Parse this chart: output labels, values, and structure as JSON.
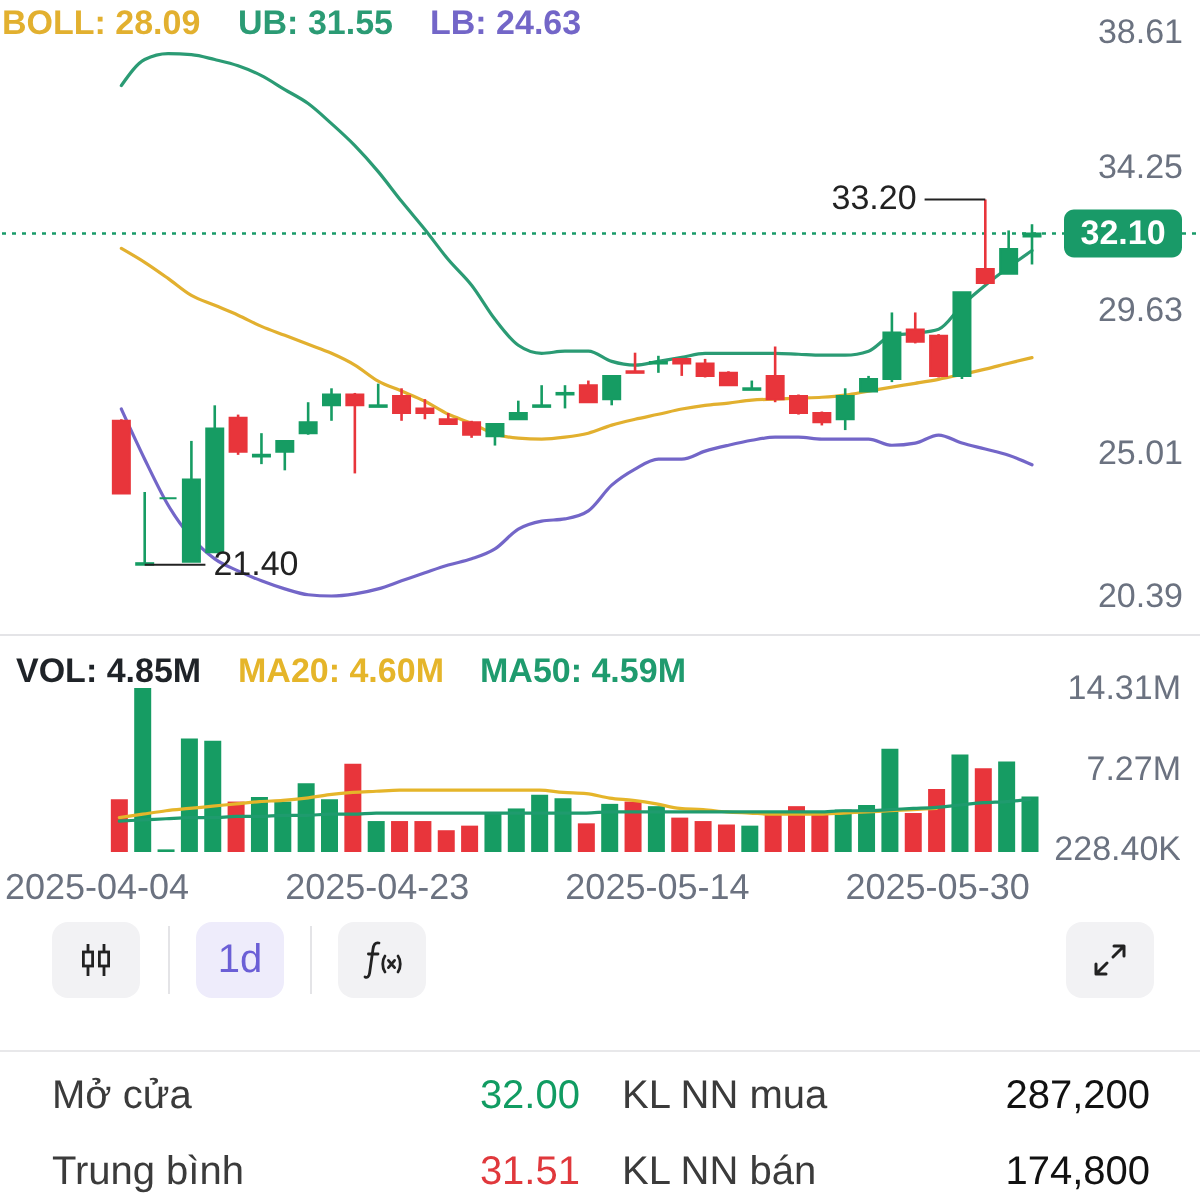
{
  "chart_data": [
    {
      "type": "candlestick",
      "categories": [
        "2025-04-04",
        null,
        null,
        null,
        null,
        null,
        null,
        null,
        null,
        null,
        null,
        null,
        "2025-04-23",
        null,
        null,
        null,
        null,
        null,
        null,
        null,
        null,
        null,
        null,
        null,
        "2025-05-14",
        null,
        null,
        null,
        null,
        null,
        null,
        null,
        null,
        null,
        null,
        null,
        "2025-05-30",
        null,
        null,
        null,
        null
      ],
      "ohlc": [
        null,
        [
          26.05,
          26.1,
          23.7,
          23.7
        ],
        [
          21.4,
          23.75,
          21.4,
          21.45
        ],
        [
          23.55,
          23.55,
          23.55,
          23.55
        ],
        [
          21.5,
          25.4,
          21.5,
          24.15
        ],
        [
          21.8,
          26.55,
          21.8,
          25.8
        ],
        [
          26.15,
          26.25,
          24.95,
          25.05
        ],
        [
          24.9,
          25.65,
          24.65,
          24.95
        ],
        [
          25.05,
          25.4,
          24.45,
          25.4
        ],
        [
          25.65,
          26.65,
          25.6,
          26.0
        ],
        [
          26.55,
          27.1,
          26.05,
          26.9
        ],
        [
          26.9,
          26.95,
          24.35,
          26.55
        ],
        [
          26.5,
          27.25,
          26.5,
          26.55
        ],
        [
          26.85,
          27.1,
          26.05,
          26.3
        ],
        [
          26.45,
          26.75,
          26.1,
          26.3
        ],
        [
          26.1,
          26.3,
          25.95,
          25.95
        ],
        [
          26.0,
          26.05,
          25.5,
          25.6
        ],
        [
          25.55,
          25.95,
          25.25,
          25.95
        ],
        [
          26.1,
          26.7,
          26.1,
          26.3
        ],
        [
          26.5,
          27.2,
          26.5,
          26.55
        ],
        [
          26.9,
          27.2,
          26.45,
          26.95
        ],
        [
          27.2,
          27.35,
          26.65,
          26.65
        ],
        [
          26.75,
          27.5,
          26.55,
          27.5
        ],
        [
          27.65,
          28.25,
          27.6,
          27.6
        ],
        [
          27.9,
          28.15,
          27.6,
          27.95
        ],
        [
          28.05,
          28.05,
          27.5,
          27.9
        ],
        [
          27.9,
          28.05,
          27.45,
          27.5
        ],
        [
          27.6,
          27.65,
          27.2,
          27.2
        ],
        [
          27.05,
          27.35,
          27.05,
          27.1
        ],
        [
          27.5,
          28.45,
          26.65,
          26.75
        ],
        [
          26.85,
          26.9,
          26.25,
          26.3
        ],
        [
          26.3,
          26.35,
          25.9,
          26.0
        ],
        [
          26.1,
          27.1,
          25.75,
          26.85
        ],
        [
          27.0,
          27.5,
          27.0,
          27.4
        ],
        [
          27.4,
          29.55,
          27.3,
          28.9
        ],
        [
          29.0,
          29.55,
          28.55,
          28.6
        ],
        [
          28.8,
          28.85,
          27.45,
          27.5
        ],
        [
          27.5,
          30.2,
          27.4,
          30.2
        ],
        [
          30.95,
          33.2,
          30.45,
          30.5
        ],
        [
          30.8,
          32.2,
          30.8,
          31.6
        ],
        [
          32.0,
          32.4,
          31.1,
          32.1
        ]
      ],
      "colors": [
        null,
        "#e8353b",
        "#169c63",
        "#169c63",
        "#169c63",
        "#169c63",
        "#e8353b",
        "#169c63",
        "#169c63",
        "#169c63",
        "#169c63",
        "#e8353b",
        "#169c63",
        "#e8353b",
        "#e8353b",
        "#e8353b",
        "#e8353b",
        "#169c63",
        "#169c63",
        "#169c63",
        "#169c63",
        "#e8353b",
        "#169c63",
        "#e8353b",
        "#169c63",
        "#e8353b",
        "#e8353b",
        "#e8353b",
        "#169c63",
        "#e8353b",
        "#e8353b",
        "#e8353b",
        "#169c63",
        "#169c63",
        "#169c63",
        "#e8353b",
        "#e8353b",
        "#169c63",
        "#e8353b",
        "#169c63",
        "#169c63"
      ],
      "series": [
        {
          "name": "BOLL: 28.09",
          "type": "line",
          "color": "#e2b02f",
          "values": [
            null,
            31.62,
            31.17,
            30.65,
            30.1,
            29.78,
            29.46,
            29.1,
            28.81,
            28.52,
            28.23,
            27.85,
            27.33,
            27.01,
            26.68,
            26.26,
            25.97,
            25.62,
            25.49,
            25.46,
            25.52,
            25.65,
            25.91,
            26.1,
            26.26,
            26.43,
            26.55,
            26.62,
            26.72,
            26.75,
            26.78,
            26.81,
            26.88,
            27.01,
            27.14,
            27.26,
            27.39,
            27.55,
            27.72,
            27.91,
            28.09
          ]
        },
        {
          "name": "UB: 31.55",
          "type": "line",
          "color": "#2b9b74",
          "values": [
            null,
            36.88,
            37.72,
            37.91,
            37.88,
            37.72,
            37.52,
            37.2,
            36.75,
            36.3,
            35.65,
            34.94,
            34.1,
            33.14,
            32.23,
            31.26,
            30.43,
            29.33,
            28.49,
            28.23,
            28.3,
            28.3,
            27.97,
            27.85,
            27.97,
            28.1,
            28.23,
            28.23,
            28.23,
            28.23,
            28.2,
            28.17,
            28.17,
            28.3,
            28.81,
            28.88,
            29.01,
            29.78,
            30.43,
            31.01,
            31.55
          ]
        },
        {
          "name": "LB: 24.63",
          "type": "line",
          "color": "#7366c8",
          "values": [
            null,
            26.43,
            24.81,
            23.33,
            null,
            21.59,
            21.2,
            20.88,
            20.62,
            20.43,
            20.39,
            20.46,
            20.62,
            20.88,
            21.14,
            21.39,
            21.59,
            21.91,
            22.55,
            22.81,
            22.88,
            23.14,
            23.97,
            24.49,
            24.81,
            24.81,
            25.07,
            25.26,
            25.42,
            25.52,
            25.52,
            25.46,
            25.46,
            25.46,
            25.26,
            25.33,
            25.59,
            25.33,
            25.14,
            24.94,
            24.63
          ]
        }
      ],
      "ylim": [
        20.39,
        38.61
      ],
      "yticks": [
        20.39,
        25.01,
        29.63,
        34.25,
        38.61
      ],
      "ref_lines": [
        {
          "axis": "y",
          "value": 32.1,
          "label": "32.10",
          "color": "#199a68",
          "line_style": "dotted"
        }
      ],
      "annotations": [
        "33.20",
        "21.40"
      ],
      "legend": "top left",
      "tick_labels": "y"
    },
    {
      "type": "bar",
      "categories": [
        "2025-04-04",
        null,
        null,
        null,
        null,
        null,
        null,
        null,
        null,
        null,
        null,
        null,
        "2025-04-23",
        null,
        null,
        null,
        null,
        null,
        null,
        null,
        null,
        null,
        null,
        null,
        "2025-05-14",
        null,
        null,
        null,
        null,
        null,
        null,
        null,
        null,
        null,
        null,
        null,
        "2025-05-30",
        null,
        null,
        null,
        null
      ],
      "series": [
        {
          "name": "VOL: 4.85M",
          "type": "bar",
          "colors": [
            null,
            "#e8353b",
            "#169c63",
            "#169c63",
            "#169c63",
            "#169c63",
            "#e8353b",
            "#169c63",
            "#169c63",
            "#169c63",
            "#169c63",
            "#e8353b",
            "#169c63",
            "#e8353b",
            "#e8353b",
            "#e8353b",
            "#e8353b",
            "#169c63",
            "#169c63",
            "#169c63",
            "#169c63",
            "#e8353b",
            "#169c63",
            "#e8353b",
            "#169c63",
            "#e8353b",
            "#e8353b",
            "#e8353b",
            "#169c63",
            "#e8353b",
            "#e8353b",
            "#e8353b",
            "#169c63",
            "#169c63",
            "#169c63",
            "#e8353b",
            "#e8353b",
            "#169c63",
            "#e8353b",
            "#169c63",
            "#169c63"
          ],
          "values": [
            null,
            4600000,
            14310000,
            228400,
            9900000,
            9700000,
            4400000,
            4800000,
            4400000,
            6000000,
            4600000,
            7700000,
            2700000,
            2700000,
            2700000,
            1900000,
            2300000,
            3400000,
            3800000,
            5000000,
            4700000,
            2500000,
            4200000,
            4400000,
            4000000,
            3000000,
            2700000,
            2400000,
            2300000,
            3400000,
            4000000,
            3300000,
            3700000,
            4100000,
            9000000,
            3400000,
            5500000,
            8500000,
            7300000,
            7900000,
            4850000
          ]
        },
        {
          "name": "MA20: 4.60M",
          "type": "line",
          "color": "#e5b52a",
          "values": [
            null,
            3000000,
            3300000,
            3600000,
            3800000,
            4000000,
            4200000,
            4400000,
            4500000,
            4700000,
            5000000,
            5200000,
            5300000,
            5400000,
            5400000,
            5400000,
            5400000,
            5400000,
            5400000,
            5400000,
            5200000,
            5100000,
            4700000,
            4500000,
            4200000,
            3800000,
            3700000,
            3500000,
            3400000,
            3300000,
            3300000,
            3300000,
            3400000,
            3500000,
            3600000,
            3700000,
            3800000,
            null,
            null,
            null,
            null
          ]
        },
        {
          "name": "MA50: 4.59M",
          "type": "line",
          "color": "#1f9b6e",
          "values": [
            null,
            2700000,
            2800000,
            2900000,
            3000000,
            3000000,
            3100000,
            3100000,
            3200000,
            3200000,
            3300000,
            3300000,
            3400000,
            3400000,
            3400000,
            3400000,
            3400000,
            3400000,
            3400000,
            3400000,
            3400000,
            3400000,
            3500000,
            3500000,
            3500000,
            3500000,
            3500000,
            3500000,
            3500000,
            3500000,
            3500000,
            3500000,
            3600000,
            3600000,
            3700000,
            3800000,
            3900000,
            4100000,
            4300000,
            4400000,
            4590000
          ]
        }
      ],
      "ylim": [
        0,
        14310000
      ],
      "yticks": [
        {
          "value": 228400,
          "label": "228.40K"
        },
        {
          "value": 7270000,
          "label": "7.27M"
        },
        {
          "value": 14310000,
          "label": "14.31M"
        }
      ],
      "legend": "top left"
    },
    {
      "type": "other",
      "annotations": [
        "1d",
        "Mở cửa",
        "32.00",
        "KL NN mua",
        "287,200",
        "Trung bình",
        "31.51",
        "KL NN bán",
        "174,800"
      ]
    }
  ]
}
